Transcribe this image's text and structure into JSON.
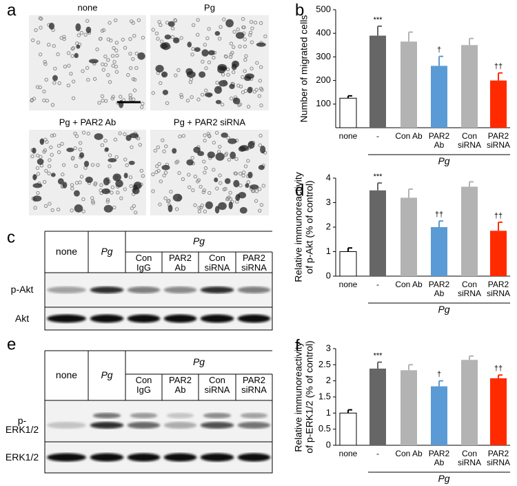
{
  "panel_labels": [
    "a",
    "b",
    "c",
    "d",
    "e",
    "f"
  ],
  "micrographs": {
    "labels": [
      "none",
      "Pg",
      "Pg + PAR2 Ab",
      "Pg + PAR2 siRNA"
    ]
  },
  "chart_data": [
    {
      "type": "bar",
      "ylabel": [
        "Number of migrated cells"
      ],
      "categories": [
        "none",
        "-",
        "Con Ab",
        "PAR2 Ab",
        "Con siRNA",
        "PAR2 siRNA"
      ],
      "group_label": "Pg",
      "values": [
        125,
        390,
        365,
        262,
        350,
        200
      ],
      "errors": [
        10,
        40,
        40,
        40,
        28,
        32
      ],
      "significance": [
        null,
        "***",
        null,
        "†",
        null,
        "††"
      ],
      "colors": [
        "#ffffff",
        "#666666",
        "#b3b3b3",
        "#5b9bd5",
        "#b3b3b3",
        "#ff2a00"
      ],
      "ylim": [
        0,
        500
      ],
      "yticks": [
        100,
        200,
        300,
        400,
        500
      ]
    },
    {
      "type": "bar",
      "ylabel": [
        "Relative immunoreactivity",
        "of p-Akt (% of control)"
      ],
      "categories": [
        "none",
        "-",
        "Con Ab",
        "PAR2 Ab",
        "Con siRNA",
        "PAR2 siRNA"
      ],
      "group_label": "Pg",
      "values": [
        1,
        3.5,
        3.2,
        2.0,
        3.65,
        1.85
      ],
      "errors": [
        0.15,
        0.3,
        0.35,
        0.25,
        0.2,
        0.35
      ],
      "significance": [
        null,
        "***",
        null,
        "††",
        null,
        "††"
      ],
      "colors": [
        "#ffffff",
        "#666666",
        "#b3b3b3",
        "#5b9bd5",
        "#b3b3b3",
        "#ff2a00"
      ],
      "ylim": [
        0,
        4
      ],
      "yticks": [
        0,
        1,
        2,
        3,
        4
      ]
    },
    {
      "type": "bar",
      "ylabel": [
        "Relative immunoreactivity",
        "of p-ERK1/2 (% of control)"
      ],
      "categories": [
        "none",
        "-",
        "Con Ab",
        "PAR2 Ab",
        "Con siRNA",
        "PAR2 siRNA"
      ],
      "group_label": "Pg",
      "values": [
        1,
        2.38,
        2.33,
        1.83,
        2.65,
        2.08
      ],
      "errors": [
        0.1,
        0.2,
        0.17,
        0.17,
        0.12,
        0.1
      ],
      "significance": [
        null,
        "***",
        null,
        "†",
        null,
        "††"
      ],
      "colors": [
        "#ffffff",
        "#666666",
        "#b3b3b3",
        "#5b9bd5",
        "#b3b3b3",
        "#ff2a00"
      ],
      "ylim": [
        0,
        3
      ],
      "yticks": [
        0,
        0.5,
        1,
        1.5,
        2,
        2.5,
        3
      ]
    }
  ],
  "blots": [
    {
      "columns_top": [
        "none",
        "Pg"
      ],
      "group": "Pg",
      "columns": [
        "Con IgG",
        "PAR2 Ab",
        "Con siRNA",
        "PAR2 siRNA"
      ],
      "rows": [
        "p-Akt",
        "Akt"
      ]
    },
    {
      "columns_top": [
        "none",
        "Pg"
      ],
      "group": "Pg",
      "columns": [
        "Con IgG",
        "PAR2 Ab",
        "Con siRNA",
        "PAR2 siRNA"
      ],
      "rows": [
        "p-ERK1/2",
        "ERK1/2"
      ]
    }
  ]
}
